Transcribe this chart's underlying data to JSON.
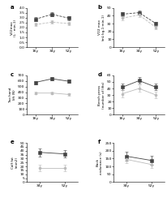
{
  "subplots": [
    {
      "label": "a",
      "xlabel_ticks": [
        "16y",
        "34y",
        "52y"
      ],
      "ylabel": "VO2max\n(L · min-1)",
      "ylim": [
        0.0,
        4.0
      ],
      "yticks": [
        0.0,
        0.5,
        1.0,
        1.5,
        2.0,
        2.5,
        3.0,
        3.5,
        4.0
      ],
      "series": [
        {
          "x": [
            0,
            1,
            2
          ],
          "y": [
            2.85,
            3.35,
            2.95
          ],
          "marker": "s",
          "color": "#444444",
          "linestyle": "--"
        },
        {
          "x": [
            0,
            1,
            2
          ],
          "y": [
            2.3,
            2.55,
            2.4
          ],
          "marker": "o",
          "color": "#bbbbbb",
          "linestyle": "--"
        }
      ]
    },
    {
      "label": "b",
      "xlabel_ticks": [
        "16y",
        "34y",
        "52y"
      ],
      "ylabel": "VO2 max\n(mL·kg-1·min-1)",
      "ylim": [
        0,
        50
      ],
      "yticks": [
        0,
        10,
        20,
        30,
        40,
        50
      ],
      "series": [
        {
          "x": [
            0,
            1,
            2
          ],
          "y": [
            42,
            44,
            30
          ],
          "marker": "s",
          "color": "#444444",
          "linestyle": "--"
        },
        {
          "x": [
            0,
            1,
            2
          ],
          "y": [
            37,
            41,
            25
          ],
          "marker": "o",
          "color": "#bbbbbb",
          "linestyle": "--"
        }
      ]
    },
    {
      "label": "c",
      "xlabel_ticks": [
        "16y",
        "34y",
        "52y"
      ],
      "ylabel": "Two hand\nlift (N)",
      "ylim": [
        0,
        700
      ],
      "yticks": [
        0,
        100,
        200,
        300,
        400,
        500,
        600,
        700
      ],
      "series": [
        {
          "x": [
            0,
            1,
            2
          ],
          "y": [
            575,
            640,
            595
          ],
          "marker": "s",
          "color": "#444444",
          "linestyle": "-"
        },
        {
          "x": [
            0,
            1,
            2
          ],
          "y": [
            385,
            385,
            360
          ],
          "marker": "o",
          "color": "#bbbbbb",
          "linestyle": "-"
        }
      ]
    },
    {
      "label": "d",
      "xlabel_ticks": [
        "16y",
        "34y",
        "52y"
      ],
      "ylabel": "Bench press\n(number of lifts)",
      "ylim": [
        0,
        60
      ],
      "yticks": [
        0,
        10,
        20,
        30,
        40,
        50,
        60
      ],
      "series": [
        {
          "x": [
            0,
            1,
            2
          ],
          "y": [
            42,
            52,
            42
          ],
          "marker": "s",
          "color": "#444444",
          "linestyle": "-"
        },
        {
          "x": [
            0,
            1,
            2
          ],
          "y": [
            32,
            40,
            30
          ],
          "marker": "o",
          "color": "#bbbbbb",
          "linestyle": "-"
        }
      ]
    },
    {
      "label": "e",
      "xlabel_ticks": [
        "34y",
        "52y"
      ],
      "ylabel": "Calf fat\n(mm2)",
      "ylim": [
        0,
        50
      ],
      "yticks": [
        0,
        5,
        10,
        15,
        20,
        25,
        30,
        35,
        40,
        45,
        50
      ],
      "series": [
        {
          "x": [
            0,
            1
          ],
          "y": [
            38,
            36
          ],
          "marker": "s",
          "color": "#444444",
          "linestyle": "-"
        },
        {
          "x": [
            0,
            1
          ],
          "y": [
            18,
            18
          ],
          "marker": "o",
          "color": "#bbbbbb",
          "linestyle": "-"
        }
      ]
    },
    {
      "label": "f",
      "xlabel_ticks": [
        "34y",
        "52y"
      ],
      "ylabel": "Back\nendurance (s)",
      "ylim": [
        0,
        250
      ],
      "yticks": [
        0,
        50,
        100,
        150,
        200,
        250
      ],
      "series": [
        {
          "x": [
            0,
            1
          ],
          "y": [
            165,
            138
          ],
          "marker": "s",
          "color": "#444444",
          "linestyle": "-"
        },
        {
          "x": [
            0,
            1
          ],
          "y": [
            145,
            112
          ],
          "marker": "o",
          "color": "#bbbbbb",
          "linestyle": "-"
        }
      ]
    }
  ],
  "error_bars": {
    "a": {
      "s0": [
        0.22,
        0.22,
        0.22
      ],
      "s1": [
        0.18,
        0.18,
        0.18
      ]
    },
    "b": {
      "s0": [
        2.5,
        2.5,
        2.5
      ],
      "s1": [
        2.5,
        2.5,
        2.5
      ]
    },
    "c": {
      "s0": [
        28,
        28,
        28
      ],
      "s1": [
        22,
        22,
        22
      ]
    },
    "d": {
      "s0": [
        5,
        5,
        5
      ],
      "s1": [
        5,
        5,
        5
      ]
    },
    "e": {
      "s0": [
        5,
        5
      ],
      "s1": [
        4,
        4
      ]
    },
    "f": {
      "s0": [
        28,
        28
      ],
      "s1": [
        22,
        22
      ]
    }
  }
}
